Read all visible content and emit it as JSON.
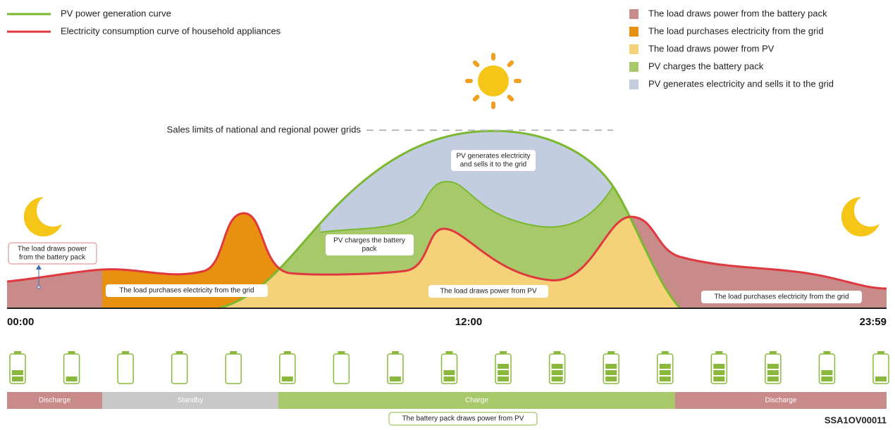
{
  "legend_lines": [
    {
      "label": "PV power generation curve",
      "color": "#7ab830"
    },
    {
      "label": "Electricity consumption curve of household appliances",
      "color": "#e0383f"
    }
  ],
  "legend_areas": [
    {
      "label": "The load draws power from the battery pack",
      "color": "#c98a8a"
    },
    {
      "label": "The load purchases electricity from the grid",
      "color": "#e8900f"
    },
    {
      "label": "The load draws power from PV",
      "color": "#f5d27a"
    },
    {
      "label": "PV charges the battery pack",
      "color": "#a8c96a"
    },
    {
      "label": "PV generates electricity and sells it to the grid",
      "color": "#c2cde0"
    }
  ],
  "grid_limit_label": "Sales limits of national and regional power grids",
  "area_labels": {
    "battery": [
      "The load draws power",
      "from the battery pack"
    ],
    "grid_left": "The load purchases electricity from the grid",
    "pv_charge": [
      "PV charges the battery",
      "pack"
    ],
    "pv_sell": [
      "PV generates electricity",
      "and sells it to the grid"
    ],
    "pv_load": "The load draws power from PV",
    "grid_right": "The load purchases electricity from the grid"
  },
  "times": [
    "00:00",
    "12:00",
    "23:59"
  ],
  "battery_levels": [
    2,
    1,
    0,
    0,
    0,
    1,
    0,
    1,
    2,
    3,
    3,
    3,
    3,
    3,
    3,
    2,
    1
  ],
  "status_bar": [
    "Discharge",
    "Standby",
    "Charge",
    "Discharge"
  ],
  "footer_note": "The battery pack draws power from PV",
  "code": "SSA1OV00011"
}
